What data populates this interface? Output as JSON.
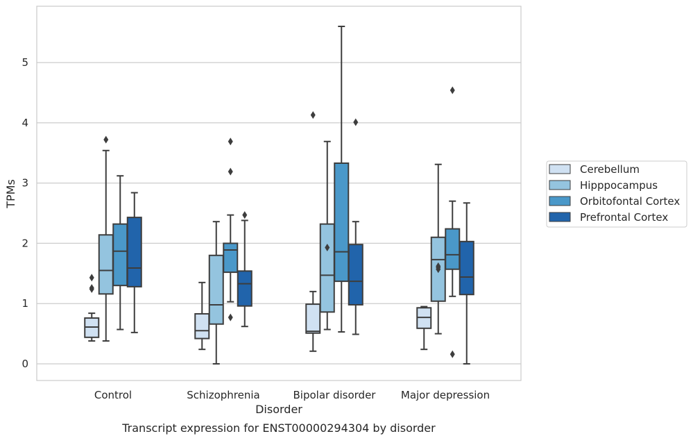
{
  "chart_data": {
    "type": "box",
    "title": "",
    "caption": "Transcript expression for ENST00000294304 by disorder",
    "xlabel": "Disorder",
    "ylabel": "TPMs",
    "ylim": [
      -0.27,
      5.9
    ],
    "yticks": [
      0,
      1,
      2,
      3,
      4,
      5
    ],
    "grid": "horizontal",
    "legend_position": "right",
    "categories": [
      "Control",
      "Schizophrenia",
      "Bipolar disorder",
      "Major depression"
    ],
    "series": [
      {
        "name": "Cerebellum",
        "color": "#d0e1f2",
        "boxes": [
          {
            "whisker_low": 0.38,
            "q1": 0.44,
            "median": 0.61,
            "q3": 0.76,
            "whisker_high": 0.84,
            "outliers": [
              1.24,
              1.26,
              1.43
            ]
          },
          {
            "whisker_low": 0.24,
            "q1": 0.42,
            "median": 0.55,
            "q3": 0.83,
            "whisker_high": 1.35,
            "outliers": []
          },
          {
            "whisker_low": 0.21,
            "q1": 0.51,
            "median": 0.54,
            "q3": 0.99,
            "whisker_high": 1.2,
            "outliers": [
              4.13
            ]
          },
          {
            "whisker_low": 0.24,
            "q1": 0.59,
            "median": 0.77,
            "q3": 0.93,
            "whisker_high": 0.95,
            "outliers": []
          }
        ]
      },
      {
        "name": "Hipppocampus",
        "color": "#94c4df",
        "boxes": [
          {
            "whisker_low": 0.38,
            "q1": 1.16,
            "median": 1.55,
            "q3": 2.14,
            "whisker_high": 3.54,
            "outliers": [
              3.72
            ]
          },
          {
            "whisker_low": 0.0,
            "q1": 0.66,
            "median": 0.98,
            "q3": 1.8,
            "whisker_high": 2.36,
            "outliers": []
          },
          {
            "whisker_low": 0.57,
            "q1": 0.86,
            "median": 1.47,
            "q3": 2.32,
            "whisker_high": 3.69,
            "outliers": [
              1.93
            ]
          },
          {
            "whisker_low": 0.5,
            "q1": 1.04,
            "median": 1.73,
            "q3": 2.1,
            "whisker_high": 3.31,
            "outliers": [
              1.57,
              1.6,
              1.62
            ]
          }
        ]
      },
      {
        "name": "Orbitofontal Cortex",
        "color": "#4a98c9",
        "boxes": [
          {
            "whisker_low": 0.57,
            "q1": 1.3,
            "median": 1.87,
            "q3": 2.32,
            "whisker_high": 3.12,
            "outliers": []
          },
          {
            "whisker_low": 1.03,
            "q1": 1.52,
            "median": 1.89,
            "q3": 2.0,
            "whisker_high": 2.47,
            "outliers": [
              0.77,
              3.19,
              3.69
            ]
          },
          {
            "whisker_low": 0.53,
            "q1": 1.37,
            "median": 1.86,
            "q3": 3.33,
            "whisker_high": 5.6,
            "outliers": []
          },
          {
            "whisker_low": 1.12,
            "q1": 1.57,
            "median": 1.81,
            "q3": 2.24,
            "whisker_high": 2.7,
            "outliers": [
              0.16,
              4.54
            ]
          }
        ]
      },
      {
        "name": "Prefrontal Cortex",
        "color": "#2164ab",
        "boxes": [
          {
            "whisker_low": 0.52,
            "q1": 1.28,
            "median": 1.59,
            "q3": 2.43,
            "whisker_high": 2.84,
            "outliers": []
          },
          {
            "whisker_low": 0.62,
            "q1": 0.96,
            "median": 1.33,
            "q3": 1.54,
            "whisker_high": 2.38,
            "outliers": [
              2.47
            ]
          },
          {
            "whisker_low": 0.49,
            "q1": 0.98,
            "median": 1.37,
            "q3": 1.98,
            "whisker_high": 2.36,
            "outliers": [
              4.01
            ]
          },
          {
            "whisker_low": 0.0,
            "q1": 1.15,
            "median": 1.44,
            "q3": 2.03,
            "whisker_high": 2.67,
            "outliers": []
          }
        ]
      }
    ]
  }
}
